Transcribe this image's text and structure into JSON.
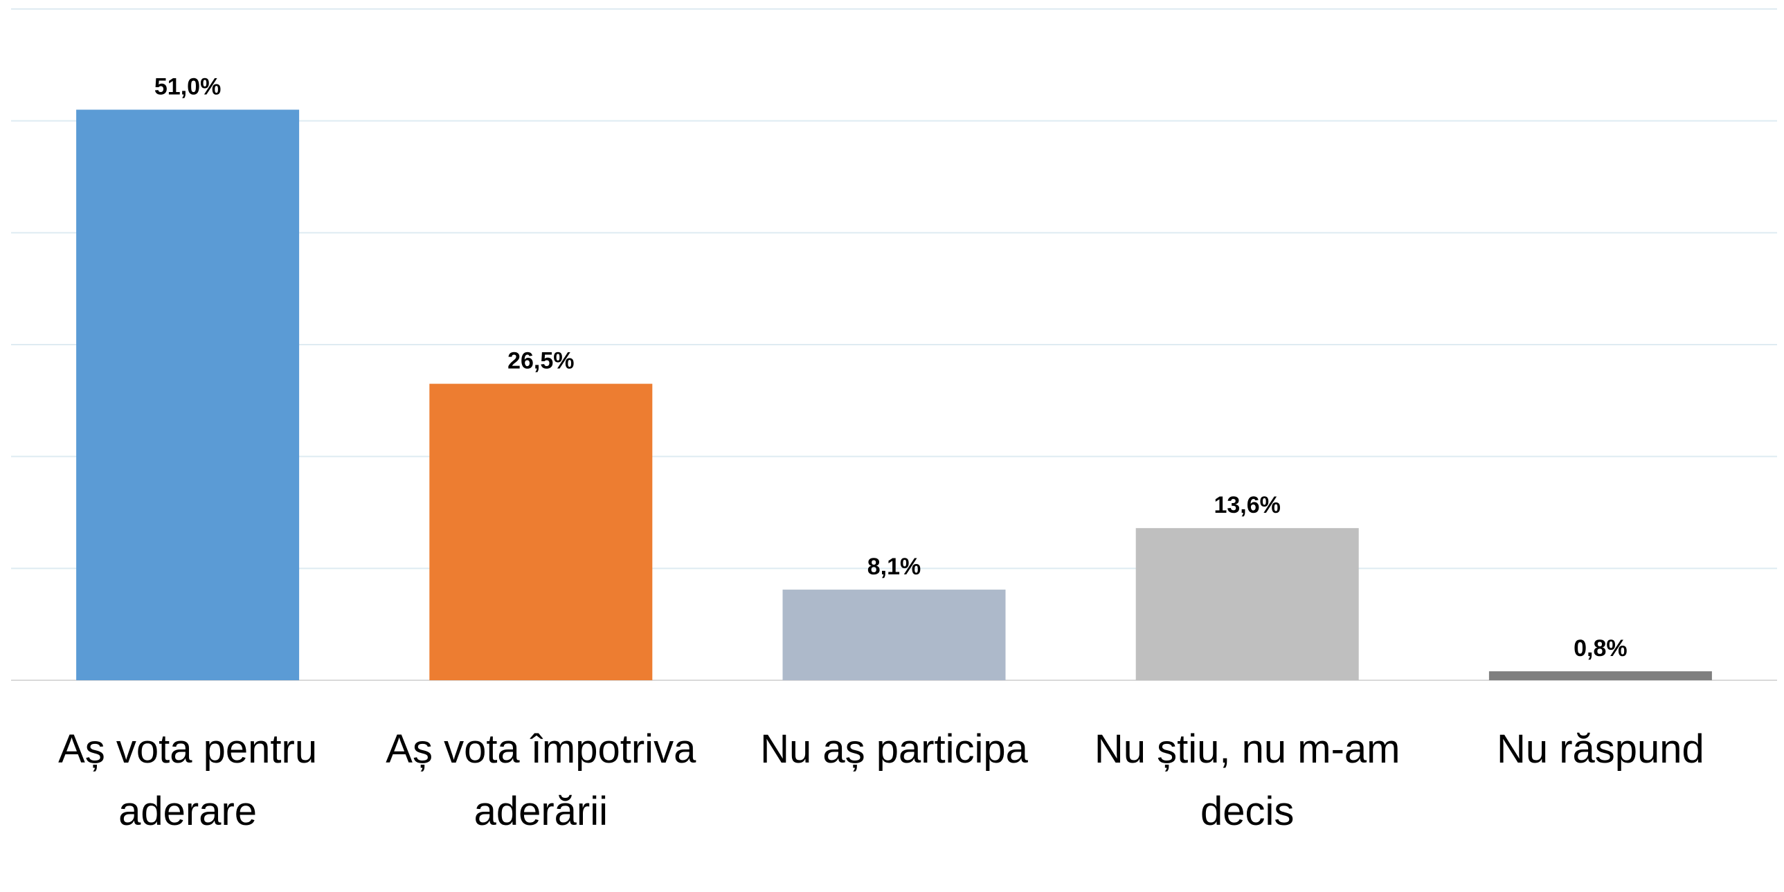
{
  "chart_data": {
    "type": "bar",
    "categories": [
      "Aș vota pentru aderare",
      "Aș vota împotriva aderării",
      "Nu aș participa",
      "Nu știu, nu m-am decis",
      "Nu răspund"
    ],
    "values": [
      51.0,
      26.5,
      8.1,
      13.6,
      0.8
    ],
    "value_labels": [
      "51,0%",
      "26,5%",
      "8,1%",
      "13,6%",
      "0,8%"
    ],
    "colors": [
      "#5b9bd5",
      "#ed7d31",
      "#adb9ca",
      "#bfbfbf",
      "#7f7f7f"
    ],
    "ylim": [
      0,
      60
    ],
    "yticks": [
      0,
      10,
      20,
      30,
      40,
      50,
      60
    ],
    "grid": true
  }
}
